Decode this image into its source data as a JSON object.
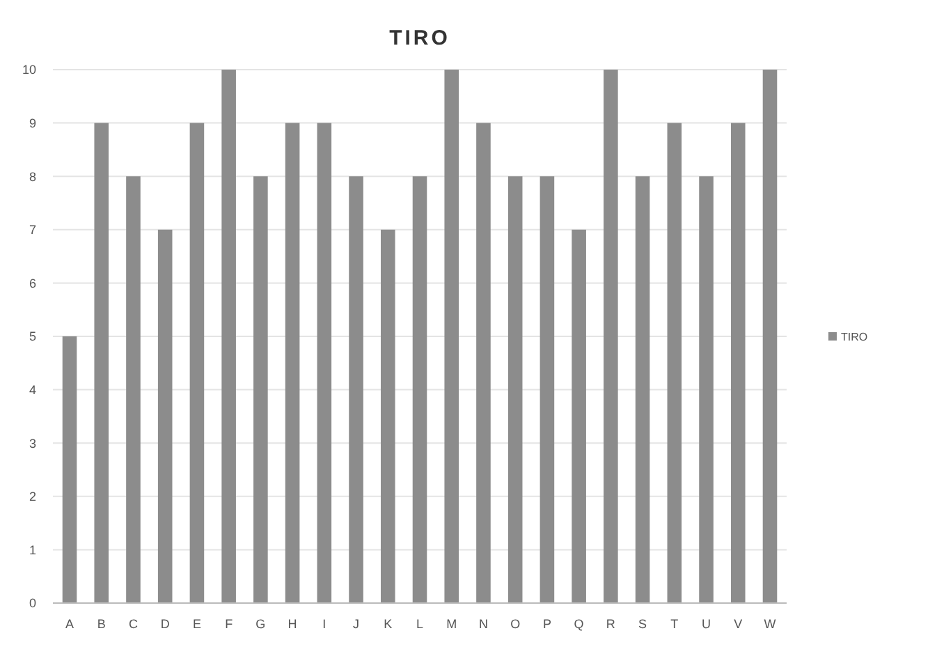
{
  "chart_data": {
    "type": "bar",
    "title": "TIRO",
    "categories": [
      "A",
      "B",
      "C",
      "D",
      "E",
      "F",
      "G",
      "H",
      "I",
      "J",
      "K",
      "L",
      "M",
      "N",
      "O",
      "P",
      "Q",
      "R",
      "S",
      "T",
      "U",
      "V",
      "W"
    ],
    "series": [
      {
        "name": "TIRO",
        "color": "#8c8c8c",
        "values": [
          5,
          9,
          8,
          7,
          9,
          10,
          8,
          9,
          9,
          8,
          7,
          8,
          10,
          9,
          8,
          8,
          7,
          10,
          8,
          9,
          8,
          9,
          10
        ]
      }
    ],
    "ylim": [
      0,
      10
    ],
    "yticks": [
      0,
      1,
      2,
      3,
      4,
      5,
      6,
      7,
      8,
      9,
      10
    ],
    "grid": "y",
    "legend": "right"
  }
}
